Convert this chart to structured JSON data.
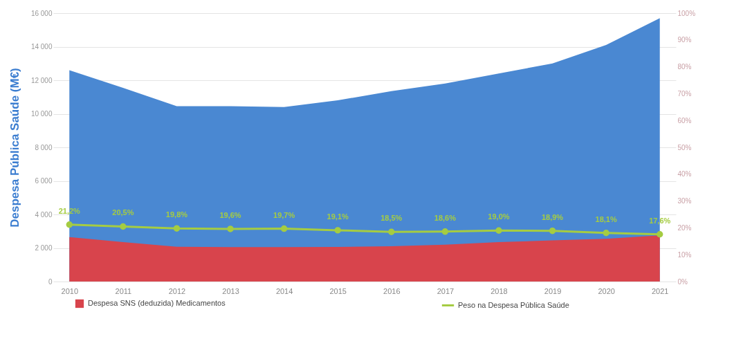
{
  "chart_data": {
    "type": "area",
    "ylabel": "Despesa Pública Saúde  (M€)",
    "categories": [
      "2010",
      "2011",
      "2012",
      "2013",
      "2014",
      "2015",
      "2016",
      "2017",
      "2018",
      "2019",
      "2020",
      "2021"
    ],
    "series": [
      {
        "color": "#4a88d2",
        "values": [
          12600,
          11550,
          10450,
          10450,
          10400,
          10800,
          11350,
          11800,
          12400,
          13000,
          14100,
          15700
        ]
      },
      {
        "name": "Despesa SNS (deduzida) Medicamentos",
        "color": "#d8444c",
        "values": [
          2650,
          2350,
          2070,
          2050,
          2050,
          2060,
          2100,
          2200,
          2350,
          2450,
          2550,
          2750
        ]
      },
      {
        "name": "Peso na Despesa Pública Saúde",
        "type": "line",
        "marker": "circle",
        "axis": "y2",
        "color": "#a5cc42",
        "values": [
          21.2,
          20.5,
          19.8,
          19.6,
          19.7,
          19.1,
          18.5,
          18.6,
          19.0,
          18.9,
          18.1,
          17.6
        ],
        "value_labels": [
          "21,2%",
          "20,5%",
          "19,8%",
          "19,6%",
          "19,7%",
          "19,1%",
          "18,5%",
          "18,6%",
          "19,0%",
          "18,9%",
          "18,1%",
          "17,6%"
        ]
      }
    ],
    "ylim": [
      0,
      16000
    ],
    "yticks": [
      {
        "value": 0,
        "label": "0"
      },
      {
        "value": 2000,
        "label": "2 000"
      },
      {
        "value": 4000,
        "label": "4 000"
      },
      {
        "value": 6000,
        "label": "6 000"
      },
      {
        "value": 8000,
        "label": "8 000"
      },
      {
        "value": 10000,
        "label": "10 000"
      },
      {
        "value": 12000,
        "label": "12 000"
      },
      {
        "value": 14000,
        "label": "14 000"
      },
      {
        "value": 16000,
        "label": "16 000"
      }
    ],
    "y2lim": [
      0,
      100
    ],
    "y2ticks": [
      {
        "value": 0,
        "label": "0%"
      },
      {
        "value": 10,
        "label": "10%"
      },
      {
        "value": 20,
        "label": "20%"
      },
      {
        "value": 30,
        "label": "30%"
      },
      {
        "value": 40,
        "label": "40%"
      },
      {
        "value": 50,
        "label": "50%"
      },
      {
        "value": 60,
        "label": "60%"
      },
      {
        "value": 70,
        "label": "70%"
      },
      {
        "value": 80,
        "label": "80%"
      },
      {
        "value": 90,
        "label": "90%"
      },
      {
        "value": 100,
        "label": "100%"
      }
    ],
    "grid": "y",
    "legend": "bottom"
  }
}
